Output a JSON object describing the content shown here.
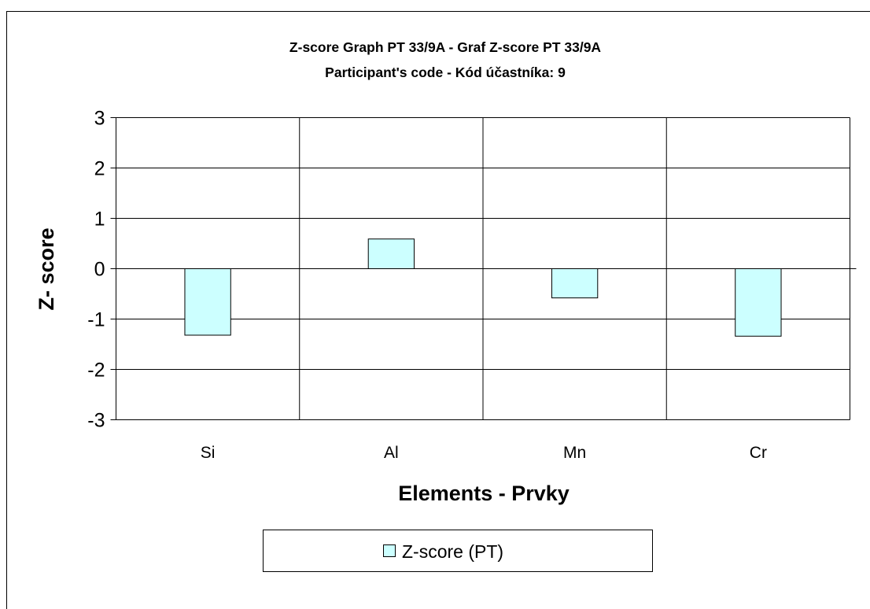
{
  "chart_data": {
    "type": "bar",
    "title_lines": [
      "Z-score Graph PT 33/9A - Graf Z-score PT 33/9A",
      "Participant's code - Kód účastníka:  9"
    ],
    "xlabel": "Elements - Prvky",
    "ylabel": "Z- score",
    "categories": [
      "Si",
      "Al",
      "Mn",
      "Cr"
    ],
    "series": [
      {
        "name": "Z-score (PT)",
        "values": [
          -1.32,
          0.59,
          -0.58,
          -1.34
        ],
        "color": "#ccffff"
      }
    ],
    "ylim": [
      -3,
      3
    ],
    "y_ticks": [
      "3",
      "2",
      "1",
      "0",
      "-1",
      "-2",
      "-3"
    ],
    "grid": true,
    "legend_position": "bottom"
  }
}
